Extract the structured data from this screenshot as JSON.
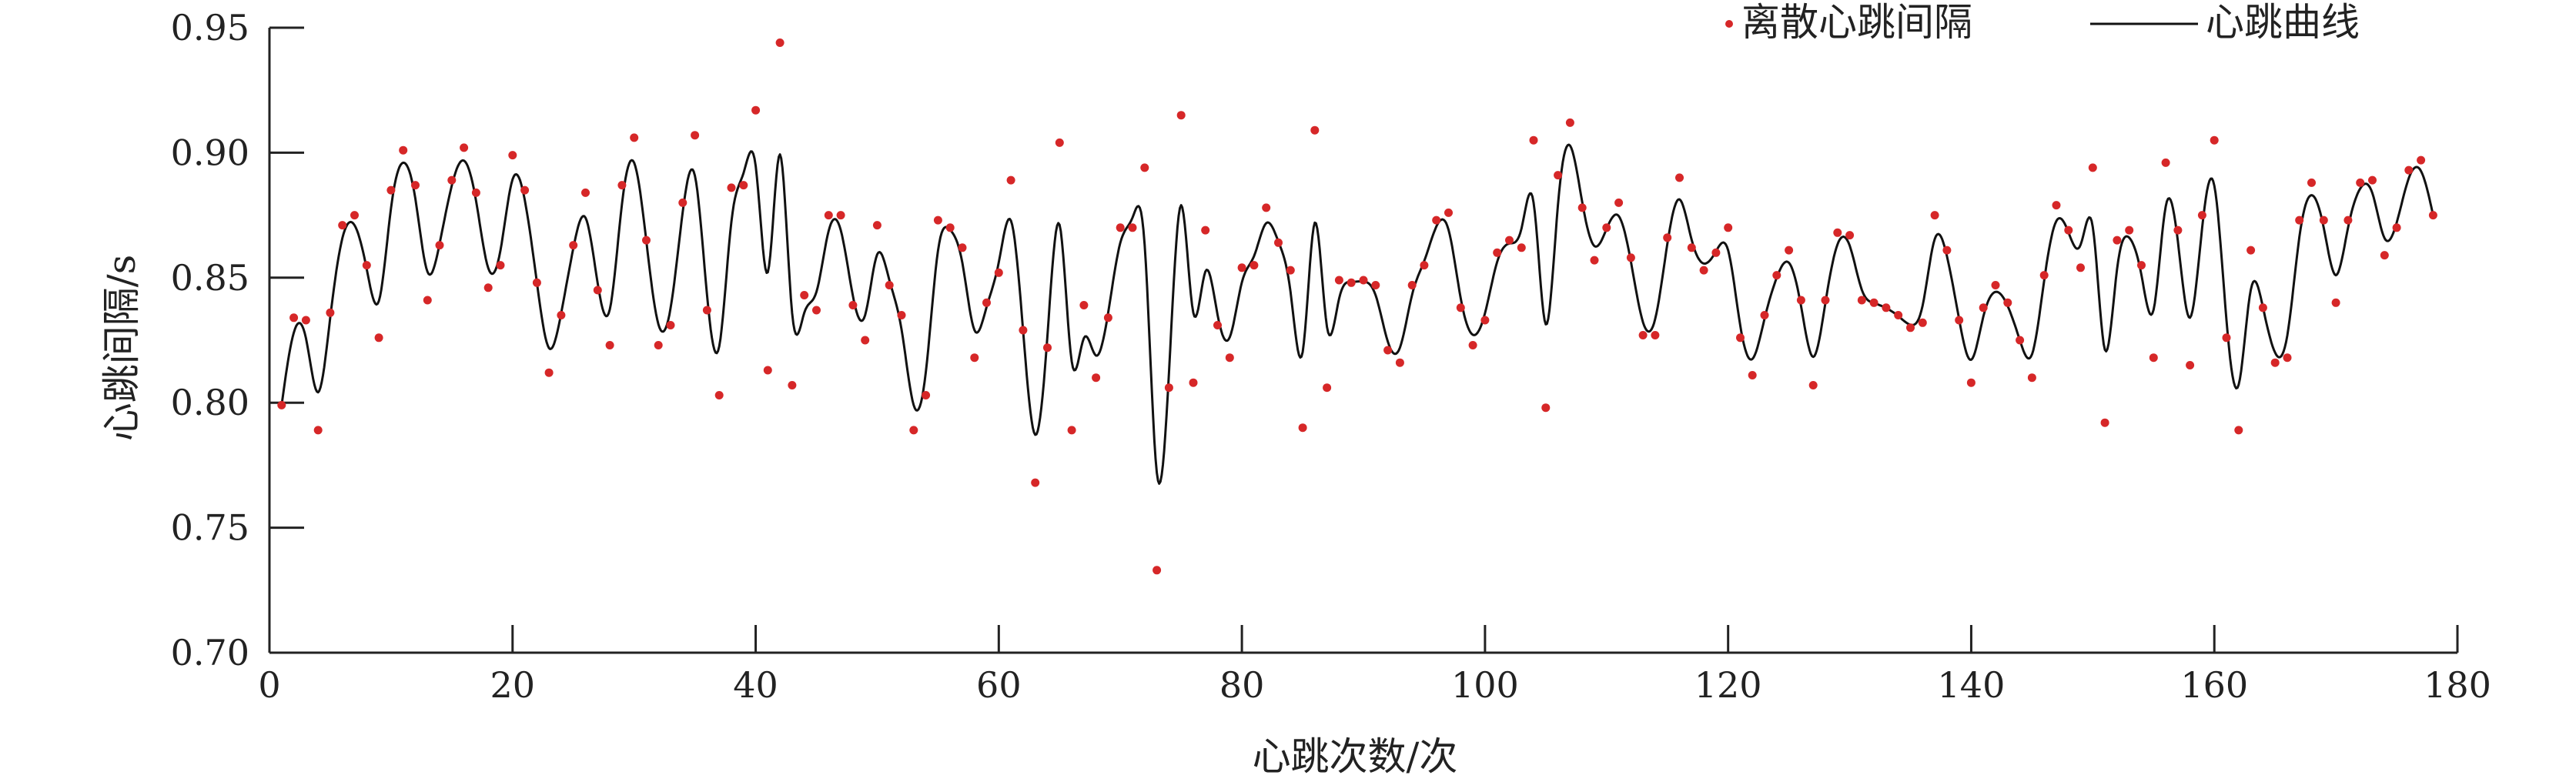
{
  "chart_data": {
    "type": "scatter",
    "xlabel": "心跳次数/次",
    "ylabel": "心跳间隔/s",
    "xlim": [
      0,
      180
    ],
    "ylim": [
      0.7,
      0.95
    ],
    "xticks": [
      "0",
      "20",
      "40",
      "60",
      "80",
      "100",
      "120",
      "140",
      "160",
      "180"
    ],
    "yticks": [
      "0.70",
      "0.75",
      "0.80",
      "0.85",
      "0.90",
      "0.95"
    ],
    "legend_position": "top-right",
    "colors": {
      "points": "#d62728",
      "curve": "#111111",
      "axis": "#222222"
    },
    "series": [
      {
        "name": "离散心跳间隔",
        "kind": "scatter",
        "x": [
          1,
          2,
          3,
          4,
          5,
          6,
          7,
          8,
          9,
          10,
          11,
          12,
          13,
          14,
          15,
          16,
          17,
          18,
          19,
          20,
          21,
          22,
          23,
          24,
          25,
          26,
          27,
          28,
          29,
          30,
          31,
          32,
          33,
          34,
          35,
          36,
          37,
          38,
          39,
          40,
          41,
          42,
          43,
          44,
          45,
          46,
          47,
          48,
          49,
          50,
          51,
          52,
          53,
          54,
          55,
          56,
          57,
          58,
          59,
          60,
          61,
          62,
          63,
          64,
          65,
          66,
          67,
          68,
          69,
          70,
          71,
          72,
          73,
          74,
          75,
          76,
          77,
          78,
          79,
          80,
          81,
          82,
          83,
          84,
          85,
          86,
          87,
          88,
          89,
          90,
          91,
          92,
          93,
          94,
          95,
          96,
          97,
          98,
          99,
          100,
          101,
          102,
          103,
          104,
          105,
          106,
          107,
          108,
          109,
          110,
          111,
          112,
          113,
          114,
          115,
          116,
          117,
          118,
          119,
          120,
          121,
          122,
          123,
          124,
          125,
          126,
          127,
          128,
          129,
          130,
          131,
          132,
          133,
          134,
          135,
          136,
          137,
          138,
          139,
          140,
          141,
          142,
          143,
          144,
          145,
          146,
          147,
          148,
          149,
          150,
          151,
          152,
          153,
          154,
          155,
          156,
          157,
          158,
          159,
          160,
          161,
          162,
          163,
          164,
          165,
          166,
          167,
          168,
          169,
          170,
          171,
          172,
          173,
          174,
          175,
          176,
          177,
          178
        ],
        "y": [
          0.799,
          0.834,
          0.833,
          0.789,
          0.836,
          0.871,
          0.875,
          0.855,
          0.826,
          0.885,
          0.901,
          0.887,
          0.841,
          0.863,
          0.889,
          0.902,
          0.884,
          0.846,
          0.855,
          0.899,
          0.885,
          0.848,
          0.812,
          0.835,
          0.863,
          0.884,
          0.845,
          0.823,
          0.887,
          0.906,
          0.865,
          0.823,
          0.831,
          0.88,
          0.907,
          0.837,
          0.803,
          0.886,
          0.887,
          0.917,
          0.813,
          0.944,
          0.807,
          0.843,
          0.837,
          0.875,
          0.875,
          0.839,
          0.825,
          0.871,
          0.847,
          0.835,
          0.789,
          0.803,
          0.873,
          0.87,
          0.862,
          0.818,
          0.84,
          0.852,
          0.889,
          0.829,
          0.768,
          0.822,
          0.904,
          0.789,
          0.839,
          0.81,
          0.834,
          0.87,
          0.87,
          0.894,
          0.733,
          0.806,
          0.915,
          0.808,
          0.869,
          0.831,
          0.818,
          0.854,
          0.855,
          0.878,
          0.864,
          0.853,
          0.79,
          0.909,
          0.806,
          0.849,
          0.848,
          0.849,
          0.847,
          0.821,
          0.816,
          0.847,
          0.855,
          0.873,
          0.876,
          0.838,
          0.823,
          0.833,
          0.86,
          0.865,
          0.862,
          0.905,
          0.798,
          0.891,
          0.912,
          0.878,
          0.857,
          0.87,
          0.88,
          0.858,
          0.827,
          0.827,
          0.866,
          0.89,
          0.862,
          0.853,
          0.86,
          0.87,
          0.826,
          0.811,
          0.835,
          0.851,
          0.861,
          0.841,
          0.807,
          0.841,
          0.868,
          0.867,
          0.841,
          0.84,
          0.838,
          0.835,
          0.83,
          0.832,
          0.875,
          0.861,
          0.833,
          0.808,
          0.838,
          0.847,
          0.84,
          0.825,
          0.81,
          0.851,
          0.879,
          0.869,
          0.854,
          0.894,
          0.792,
          0.865,
          0.869,
          0.855,
          0.818,
          0.896,
          0.869,
          0.815,
          0.875,
          0.905,
          0.826,
          0.789,
          0.861,
          0.838,
          0.816,
          0.818,
          0.873,
          0.888,
          0.873,
          0.84,
          0.873,
          0.888,
          0.889,
          0.859,
          0.87,
          0.893,
          0.897,
          0.875
        ]
      },
      {
        "name": "心跳曲线",
        "kind": "smooth_line"
      }
    ]
  }
}
